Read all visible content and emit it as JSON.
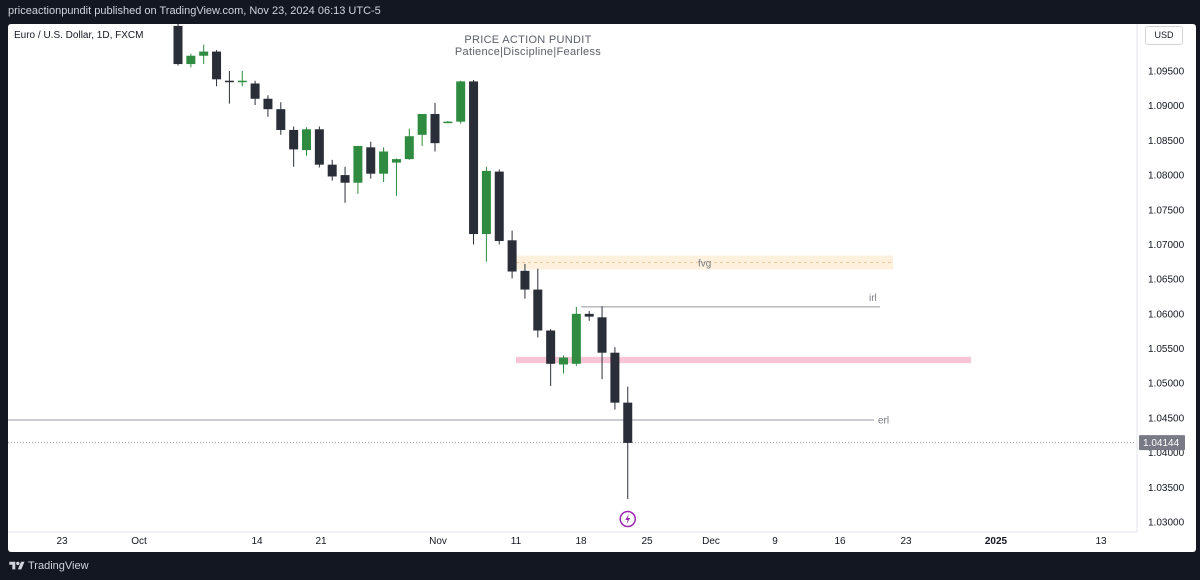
{
  "header": {
    "published": "priceactionpundit published on TradingView.com, Nov 23, 2024 06:13 UTC-5"
  },
  "chart": {
    "symbol": "Euro / U.S. Dollar, 1D, FXCM",
    "watermark_title": "PRICE ACTION PUNDIT",
    "watermark_subtitle": "Patience|Discipline|Fearless",
    "currency_button": "USD",
    "current_price": "1.04144",
    "colors": {
      "up": "#2e8b3f",
      "down": "#2a2e39",
      "price_badge": "#787b86",
      "fvg_zone": "#fdf1de",
      "pink_zone": "#f8c5d6",
      "background": "#ffffff",
      "frame": "#131722"
    }
  },
  "annotations": {
    "fvg": "fvg",
    "irl": "irl",
    "erl": "erl"
  },
  "footer": {
    "brand": "TradingView"
  },
  "chart_data": {
    "type": "candlestick",
    "ylim": [
      1.028,
      1.1015
    ],
    "y_ticks": [
      "1.09500",
      "1.09000",
      "1.08500",
      "1.08000",
      "1.07500",
      "1.07000",
      "1.06500",
      "1.06000",
      "1.05500",
      "1.05000",
      "1.04500",
      "1.04000",
      "1.03500",
      "1.03000"
    ],
    "x_ticks": [
      "23",
      "Oct",
      "14",
      "21",
      "Nov",
      "11",
      "18",
      "25",
      "Dec",
      "9",
      "16",
      "23",
      "2025",
      "13"
    ],
    "candles": [
      {
        "o": 1.1015,
        "h": 1.103,
        "l": 1.0958,
        "c": 1.096
      },
      {
        "o": 1.096,
        "h": 1.0975,
        "l": 1.0955,
        "c": 1.0972
      },
      {
        "o": 1.0972,
        "h": 1.0988,
        "l": 1.096,
        "c": 1.0978
      },
      {
        "o": 1.0978,
        "h": 1.098,
        "l": 1.0928,
        "c": 1.0938
      },
      {
        "o": 1.0936,
        "h": 1.095,
        "l": 1.0903,
        "c": 1.0935
      },
      {
        "o": 1.0936,
        "h": 1.095,
        "l": 1.0928,
        "c": 1.0936
      },
      {
        "o": 1.0932,
        "h": 1.0936,
        "l": 1.0901,
        "c": 1.091
      },
      {
        "o": 1.091,
        "h": 1.0915,
        "l": 1.0884,
        "c": 1.0895
      },
      {
        "o": 1.0895,
        "h": 1.0905,
        "l": 1.0858,
        "c": 1.0865
      },
      {
        "o": 1.0865,
        "h": 1.087,
        "l": 1.0812,
        "c": 1.0837
      },
      {
        "o": 1.0836,
        "h": 1.0869,
        "l": 1.0828,
        "c": 1.0866
      },
      {
        "o": 1.0866,
        "h": 1.087,
        "l": 1.0811,
        "c": 1.0815
      },
      {
        "o": 1.0815,
        "h": 1.0822,
        "l": 1.0792,
        "c": 1.0798
      },
      {
        "o": 1.08,
        "h": 1.0812,
        "l": 1.076,
        "c": 1.0789
      },
      {
        "o": 1.0789,
        "h": 1.0842,
        "l": 1.0773,
        "c": 1.0842
      },
      {
        "o": 1.084,
        "h": 1.0848,
        "l": 1.0795,
        "c": 1.0802
      },
      {
        "o": 1.0802,
        "h": 1.084,
        "l": 1.079,
        "c": 1.0834
      },
      {
        "o": 1.0818,
        "h": 1.0824,
        "l": 1.077,
        "c": 1.0823
      },
      {
        "o": 1.0823,
        "h": 1.0867,
        "l": 1.0822,
        "c": 1.0856
      },
      {
        "o": 1.0858,
        "h": 1.0888,
        "l": 1.0842,
        "c": 1.0888
      },
      {
        "o": 1.0888,
        "h": 1.0904,
        "l": 1.0834,
        "c": 1.0846
      },
      {
        "o": 1.0876,
        "h": 1.0878,
        "l": 1.0875,
        "c": 1.0877
      },
      {
        "o": 1.0877,
        "h": 1.0936,
        "l": 1.0874,
        "c": 1.0935
      },
      {
        "o": 1.0935,
        "h": 1.0937,
        "l": 1.07,
        "c": 1.0715
      },
      {
        "o": 1.0715,
        "h": 1.0812,
        "l": 1.0675,
        "c": 1.0806
      },
      {
        "o": 1.0805,
        "h": 1.0808,
        "l": 1.07,
        "c": 1.0705
      },
      {
        "o": 1.0706,
        "h": 1.072,
        "l": 1.0651,
        "c": 1.0661
      },
      {
        "o": 1.0662,
        "h": 1.0672,
        "l": 1.0622,
        "c": 1.0635
      },
      {
        "o": 1.0635,
        "h": 1.0665,
        "l": 1.0566,
        "c": 1.0576
      },
      {
        "o": 1.0576,
        "h": 1.0578,
        "l": 1.0496,
        "c": 1.0528
      },
      {
        "o": 1.0527,
        "h": 1.054,
        "l": 1.0514,
        "c": 1.0537
      },
      {
        "o": 1.0528,
        "h": 1.061,
        "l": 1.0525,
        "c": 1.06
      },
      {
        "o": 1.06,
        "h": 1.0604,
        "l": 1.059,
        "c": 1.0596
      },
      {
        "o": 1.0595,
        "h": 1.0611,
        "l": 1.0506,
        "c": 1.0544
      },
      {
        "o": 1.0544,
        "h": 1.0552,
        "l": 1.0462,
        "c": 1.0472
      },
      {
        "o": 1.0472,
        "h": 1.0495,
        "l": 1.0333,
        "c": 1.0414
      }
    ],
    "zones": [
      {
        "label": "fvg",
        "top": 1.0684,
        "bottom": 1.0664
      },
      {
        "label": "pink",
        "top": 1.0538,
        "bottom": 1.0529
      }
    ],
    "levels": [
      {
        "label": "irl",
        "value": 1.061
      },
      {
        "label": "erl",
        "value": 1.0447
      },
      {
        "label": "current",
        "value": 1.04144
      }
    ]
  }
}
